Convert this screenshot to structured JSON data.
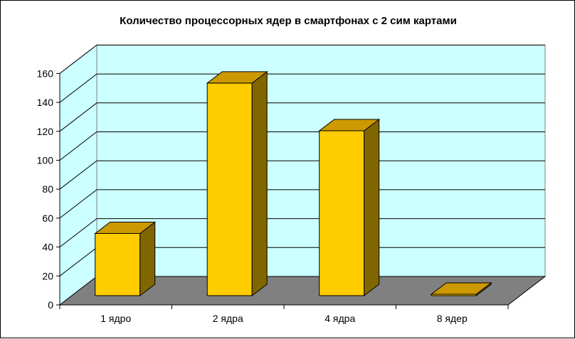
{
  "chart_data": {
    "type": "bar",
    "title": "Количество процессорных ядер в смартфонах с 2 сим картами",
    "categories": [
      "1 ядро",
      "2 ядра",
      "4 ядра",
      "8 ядер"
    ],
    "values": [
      43,
      147,
      114,
      1
    ],
    "xlabel": "",
    "ylabel": "",
    "ylim": [
      0,
      160
    ],
    "yticks": [
      0,
      20,
      40,
      60,
      80,
      100,
      120,
      140,
      160
    ],
    "grid": true,
    "legend": "none",
    "style": "3d-column",
    "colors": {
      "wall": "#ccffff",
      "floor": "#808080",
      "bar_front": "#ffcc00",
      "bar_top": "#cc9900",
      "bar_side": "#806600",
      "gridline": "#000000"
    }
  }
}
